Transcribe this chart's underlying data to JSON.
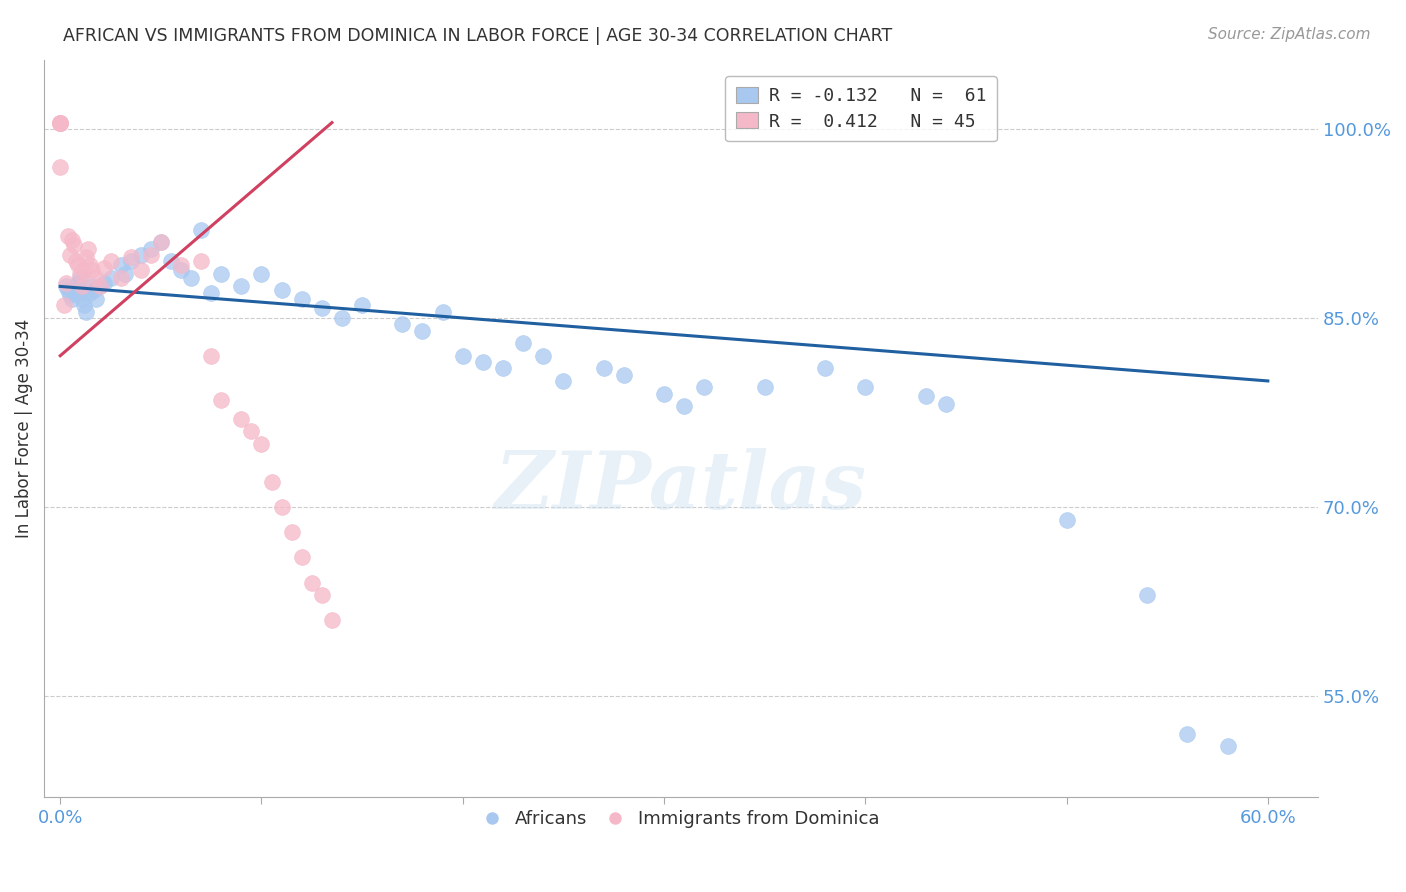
{
  "title": "AFRICAN VS IMMIGRANTS FROM DOMINICA IN LABOR FORCE | AGE 30-34 CORRELATION CHART",
  "source": "Source: ZipAtlas.com",
  "ylabel": "In Labor Force | Age 30-34",
  "xlim": [
    -0.008,
    0.625
  ],
  "ylim": [
    0.47,
    1.055
  ],
  "xticks": [
    0.0,
    0.1,
    0.2,
    0.3,
    0.4,
    0.5,
    0.6
  ],
  "xtick_labels": [
    "0.0%",
    "",
    "",
    "",
    "",
    "",
    "60.0%"
  ],
  "ytick_labels": [
    "55.0%",
    "70.0%",
    "85.0%",
    "100.0%"
  ],
  "yticks": [
    0.55,
    0.7,
    0.85,
    1.0
  ],
  "watermark": "ZIPatlas",
  "blue_color": "#a8c8f0",
  "pink_color": "#f5b8c8",
  "blue_line_color": "#2060a0",
  "pink_line_color": "#d04060",
  "background_color": "#ffffff",
  "grid_color": "#cccccc",
  "axis_color": "#5599dd",
  "title_color": "#333333",
  "africans_x": [
    0.003,
    0.004,
    0.005,
    0.006,
    0.007,
    0.008,
    0.009,
    0.01,
    0.01,
    0.011,
    0.012,
    0.013,
    0.015,
    0.016,
    0.017,
    0.018,
    0.02,
    0.022,
    0.025,
    0.03,
    0.032,
    0.035,
    0.04,
    0.045,
    0.05,
    0.055,
    0.06,
    0.065,
    0.07,
    0.075,
    0.08,
    0.09,
    0.1,
    0.11,
    0.12,
    0.13,
    0.14,
    0.15,
    0.17,
    0.18,
    0.19,
    0.2,
    0.21,
    0.22,
    0.23,
    0.24,
    0.25,
    0.27,
    0.28,
    0.3,
    0.31,
    0.32,
    0.35,
    0.38,
    0.4,
    0.43,
    0.44,
    0.5,
    0.54,
    0.56,
    0.58
  ],
  "africans_y": [
    0.875,
    0.872,
    0.868,
    0.865,
    0.87,
    0.875,
    0.878,
    0.882,
    0.87,
    0.865,
    0.86,
    0.855,
    0.87,
    0.875,
    0.872,
    0.865,
    0.875,
    0.878,
    0.882,
    0.892,
    0.885,
    0.895,
    0.9,
    0.905,
    0.91,
    0.895,
    0.888,
    0.882,
    0.92,
    0.87,
    0.885,
    0.875,
    0.885,
    0.872,
    0.865,
    0.858,
    0.85,
    0.86,
    0.845,
    0.84,
    0.855,
    0.82,
    0.815,
    0.81,
    0.83,
    0.82,
    0.8,
    0.81,
    0.805,
    0.79,
    0.78,
    0.795,
    0.795,
    0.81,
    0.795,
    0.788,
    0.782,
    0.69,
    0.63,
    0.52,
    0.51
  ],
  "dominica_x": [
    0.0,
    0.0,
    0.0,
    0.0,
    0.0,
    0.0,
    0.0,
    0.002,
    0.003,
    0.004,
    0.005,
    0.006,
    0.007,
    0.008,
    0.009,
    0.01,
    0.011,
    0.012,
    0.013,
    0.014,
    0.015,
    0.016,
    0.018,
    0.02,
    0.022,
    0.025,
    0.03,
    0.035,
    0.04,
    0.045,
    0.05,
    0.06,
    0.07,
    0.075,
    0.08,
    0.09,
    0.095,
    0.1,
    0.105,
    0.11,
    0.115,
    0.12,
    0.125,
    0.13,
    0.135
  ],
  "dominica_y": [
    1.005,
    1.005,
    1.005,
    1.005,
    1.005,
    1.005,
    0.97,
    0.86,
    0.878,
    0.915,
    0.9,
    0.912,
    0.908,
    0.895,
    0.892,
    0.885,
    0.875,
    0.888,
    0.898,
    0.905,
    0.892,
    0.888,
    0.882,
    0.875,
    0.89,
    0.895,
    0.882,
    0.898,
    0.888,
    0.9,
    0.91,
    0.892,
    0.895,
    0.82,
    0.785,
    0.77,
    0.76,
    0.75,
    0.72,
    0.7,
    0.68,
    0.66,
    0.64,
    0.63,
    0.61
  ],
  "blue_trendline_x": [
    0.0,
    0.6
  ],
  "blue_trendline_y": [
    0.875,
    0.8
  ],
  "pink_trendline_x": [
    0.0,
    0.135
  ],
  "pink_trendline_y": [
    0.82,
    1.005
  ]
}
